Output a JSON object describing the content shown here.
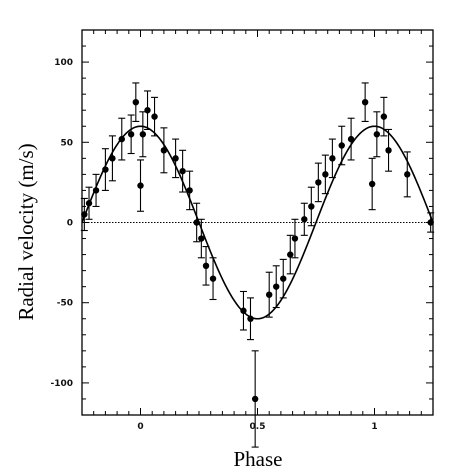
{
  "chart_data": {
    "type": "scatter",
    "title": "",
    "xlabel": "Phase",
    "ylabel": "Radial velocity (m/s)",
    "xlim": [
      -0.25,
      1.25
    ],
    "ylim": [
      -120,
      120
    ],
    "x_ticks": [
      0,
      0.5,
      1
    ],
    "x_tick_labels": [
      "0",
      "0.5",
      "1"
    ],
    "y_ticks": [
      100,
      50,
      0,
      -50,
      -100
    ],
    "y_tick_labels": [
      "100",
      "50",
      "0",
      "-50",
      "-100"
    ],
    "zero_line": true,
    "grid": false,
    "fit_curve": {
      "type": "sine",
      "amplitude": 60,
      "peak_phase": 0.0
    },
    "series": [
      {
        "points": [
          {
            "x": -0.24,
            "y": 5,
            "err": 10
          },
          {
            "x": -0.22,
            "y": 12,
            "err": 10
          },
          {
            "x": -0.19,
            "y": 20,
            "err": 10
          },
          {
            "x": -0.15,
            "y": 33,
            "err": 13
          },
          {
            "x": -0.12,
            "y": 40,
            "err": 14
          },
          {
            "x": -0.08,
            "y": 52,
            "err": 13
          },
          {
            "x": -0.04,
            "y": 55,
            "err": 12
          },
          {
            "x": -0.02,
            "y": 75,
            "err": 12
          },
          {
            "x": 0.0,
            "y": 23,
            "err": 16
          },
          {
            "x": 0.01,
            "y": 55,
            "err": 14
          },
          {
            "x": 0.03,
            "y": 70,
            "err": 12
          },
          {
            "x": 0.06,
            "y": 66,
            "err": 12
          },
          {
            "x": 0.1,
            "y": 45,
            "err": 14
          },
          {
            "x": 0.15,
            "y": 40,
            "err": 12
          },
          {
            "x": 0.18,
            "y": 32,
            "err": 13
          },
          {
            "x": 0.21,
            "y": 20,
            "err": 12
          },
          {
            "x": 0.24,
            "y": 0,
            "err": 12
          },
          {
            "x": 0.26,
            "y": -10,
            "err": 12
          },
          {
            "x": 0.28,
            "y": -27,
            "err": 12
          },
          {
            "x": 0.31,
            "y": -35,
            "err": 13
          },
          {
            "x": 0.44,
            "y": -55,
            "err": 12
          },
          {
            "x": 0.47,
            "y": -60,
            "err": 13
          },
          {
            "x": 0.49,
            "y": -110,
            "err": 30
          },
          {
            "x": 0.55,
            "y": -45,
            "err": 14
          },
          {
            "x": 0.58,
            "y": -40,
            "err": 13
          },
          {
            "x": 0.61,
            "y": -35,
            "err": 12
          },
          {
            "x": 0.64,
            "y": -20,
            "err": 12
          },
          {
            "x": 0.66,
            "y": -10,
            "err": 12
          },
          {
            "x": 0.7,
            "y": 2,
            "err": 10
          },
          {
            "x": 0.73,
            "y": 10,
            "err": 12
          },
          {
            "x": 0.76,
            "y": 25,
            "err": 12
          },
          {
            "x": 0.79,
            "y": 30,
            "err": 12
          },
          {
            "x": 0.82,
            "y": 40,
            "err": 12
          },
          {
            "x": 0.86,
            "y": 48,
            "err": 12
          },
          {
            "x": 0.9,
            "y": 52,
            "err": 13
          },
          {
            "x": 0.96,
            "y": 75,
            "err": 12
          },
          {
            "x": 0.99,
            "y": 24,
            "err": 16
          },
          {
            "x": 1.01,
            "y": 55,
            "err": 14
          },
          {
            "x": 1.04,
            "y": 66,
            "err": 12
          },
          {
            "x": 1.06,
            "y": 45,
            "err": 13
          },
          {
            "x": 1.14,
            "y": 30,
            "err": 14
          },
          {
            "x": 1.24,
            "y": 0,
            "err": 6
          }
        ]
      }
    ]
  }
}
